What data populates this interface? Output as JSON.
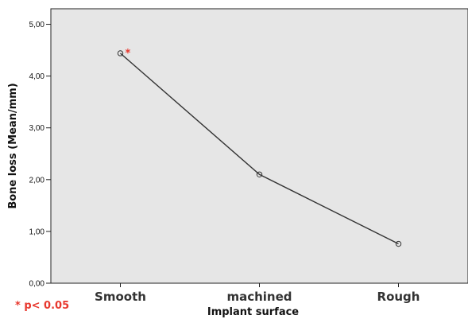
{
  "chart_data": {
    "type": "line",
    "title": "",
    "xlabel": "Implant surface",
    "ylabel": "Bone loss (Mean/mm)",
    "categories": [
      "Smooth",
      "machined",
      "Rough"
    ],
    "series": [
      {
        "values": [
          4.44,
          2.1,
          0.76
        ]
      }
    ],
    "ylim": [
      0,
      5.3
    ],
    "yticks": [
      0,
      1,
      2,
      3,
      4,
      5
    ],
    "ytick_labels": [
      "0,00",
      "1,00",
      "2,00",
      "3,00",
      "4,00",
      "5,00"
    ],
    "grid": false,
    "legend": "none",
    "annotations": [
      {
        "category": "Smooth",
        "text": "*"
      }
    ],
    "footnote": "* p< 0.05",
    "colors": {
      "plot_background": "#e6e6e6",
      "line": "#333333",
      "annotation": "#e8382e",
      "footnote": "#e8382e"
    }
  }
}
